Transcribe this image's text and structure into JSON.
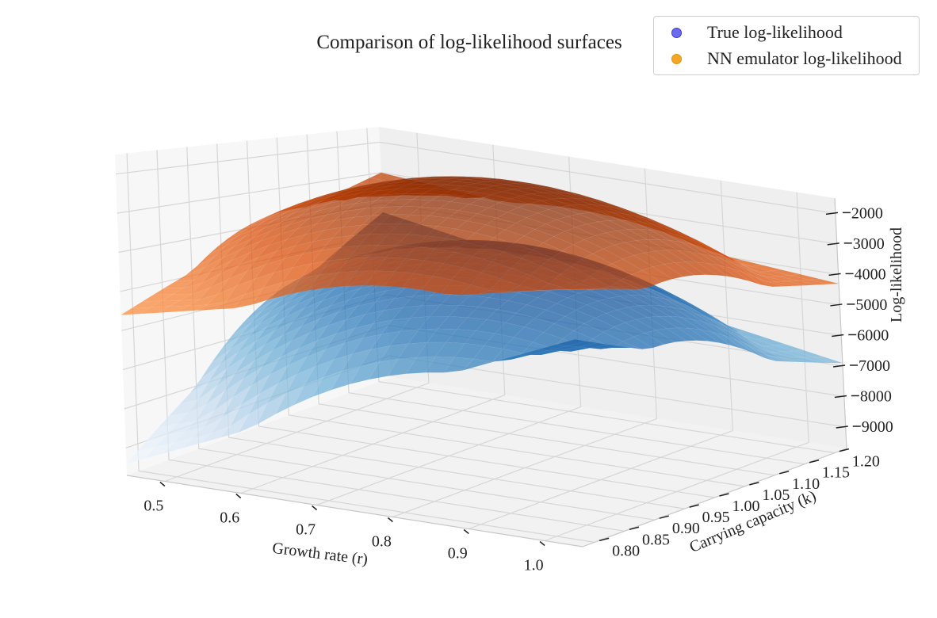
{
  "chart_data": {
    "type": "surface3d",
    "title": "Comparison of log-likelihood surfaces",
    "xlabel": "Growth rate (r)",
    "ylabel": "Carrying capacity (k)",
    "zlabel": "Log-likelihood",
    "x_range": [
      0.45,
      1.05
    ],
    "y_range": [
      0.78,
      1.22
    ],
    "z_range": [
      -9700,
      -1500
    ],
    "x_ticks": [
      0.5,
      0.6,
      0.7,
      0.8,
      0.9,
      1.0
    ],
    "x_tick_labels": [
      "0.5",
      "0.6",
      "0.7",
      "0.8",
      "0.9",
      "1.0"
    ],
    "y_ticks": [
      0.8,
      0.85,
      0.9,
      0.95,
      1.0,
      1.05,
      1.1,
      1.15,
      1.2
    ],
    "y_tick_labels": [
      "0.80",
      "0.85",
      "0.90",
      "0.95",
      "1.00",
      "1.05",
      "1.10",
      "1.15",
      "1.20"
    ],
    "z_ticks": [
      -9000,
      -8000,
      -7000,
      -6000,
      -5000,
      -4000,
      -3000,
      -2000
    ],
    "z_tick_labels": [
      "9000",
      "8000",
      "7000",
      "6000",
      "5000",
      "4000",
      "3000",
      "2000"
    ],
    "grid": true,
    "legend_position": "top-right",
    "series": [
      {
        "name": "True log-likelihood",
        "marker_color": "#6b6bf0",
        "colormap": "Blues",
        "peak_r": 0.75,
        "peak_k": 1.0,
        "peak_value": -3700,
        "corner_values": {
          "r0.45_k0.78": -9400,
          "r1.05_k0.78": -4400,
          "r0.45_k1.22": -4300,
          "r1.05_k1.22": -6900
        }
      },
      {
        "name": "NN emulator log-likelihood",
        "marker_color": "#f5a623",
        "colormap": "Oranges",
        "peak_r": 0.75,
        "peak_k": 1.0,
        "peak_value": -1700,
        "corner_values": {
          "r0.45_k0.78": -5600,
          "r1.05_k0.78": -3100,
          "r0.45_k1.22": -3000,
          "r1.05_k1.22": -4300
        }
      }
    ]
  }
}
